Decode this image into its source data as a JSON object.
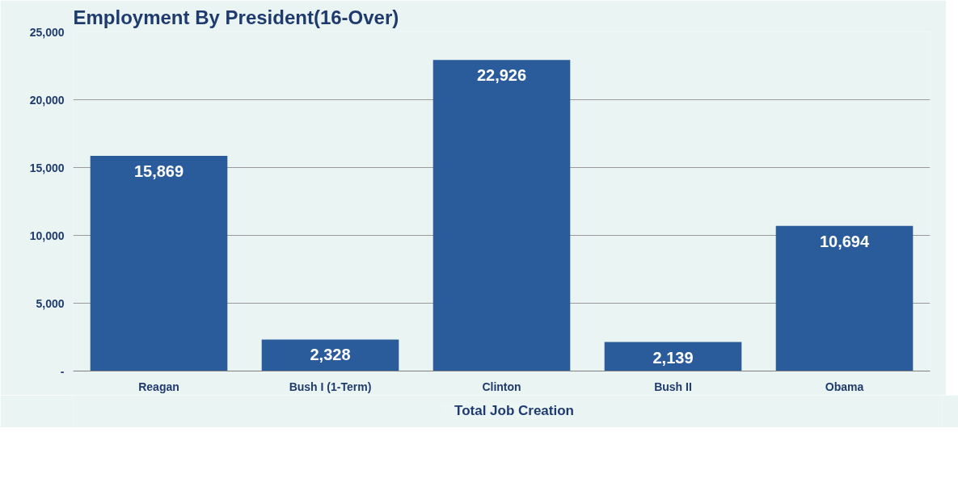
{
  "chart_data": {
    "type": "bar",
    "title": "Employment By President(16-Over)",
    "categories": [
      "Reagan",
      "Bush I (1-Term)",
      "Clinton",
      "Bush II",
      "Obama"
    ],
    "series": [
      {
        "name": "Total Job Creation",
        "color": "#2a5c9c",
        "values": [
          15869,
          2328,
          22926,
          2139,
          10694
        ],
        "value_labels": [
          "15,869",
          "2,328",
          "22,926",
          "2,139",
          "10,694"
        ]
      }
    ],
    "ylim": [
      0,
      25000
    ],
    "yticks": [
      {
        "value": 0,
        "label": "-"
      },
      {
        "value": 5000,
        "label": "5,000"
      },
      {
        "value": 10000,
        "label": "10,000"
      },
      {
        "value": 15000,
        "label": "15,000"
      },
      {
        "value": 20000,
        "label": "20,000"
      },
      {
        "value": 25000,
        "label": "25,000"
      }
    ],
    "grid": "y",
    "legend": "bottom"
  }
}
